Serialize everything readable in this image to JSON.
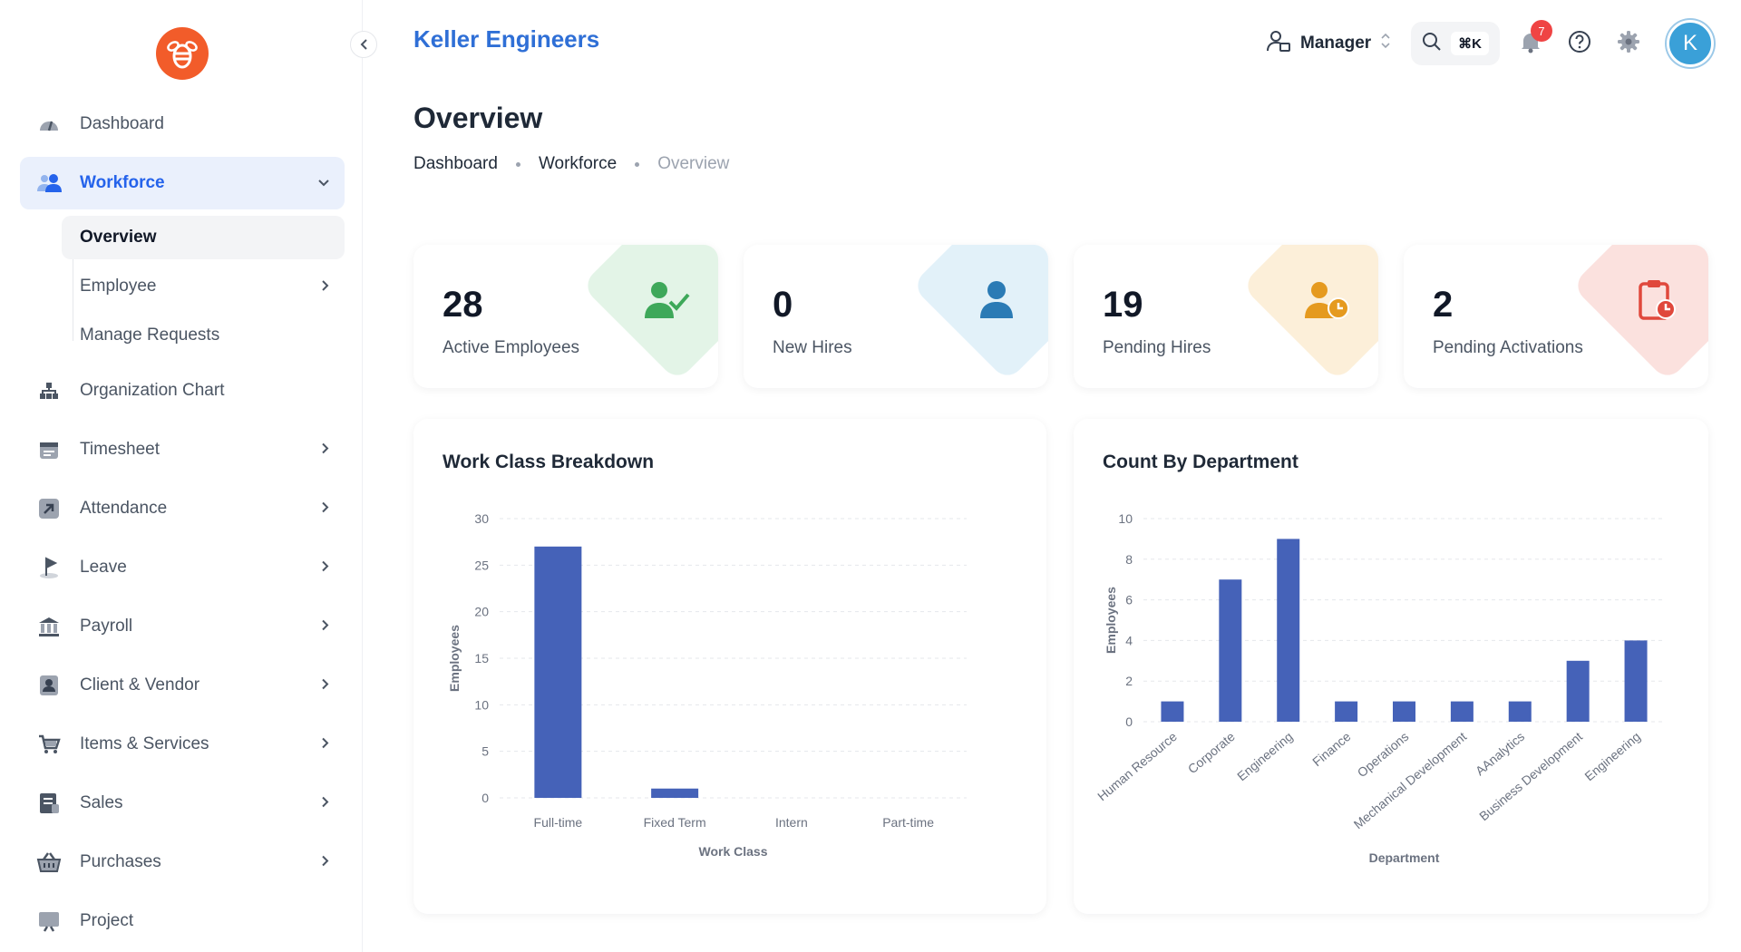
{
  "app": {
    "brand": "Keller Engineers",
    "collapse_icon": "chevron-left-icon"
  },
  "sidebar": {
    "items": [
      {
        "label": "Dashboard",
        "icon": "dashboard-icon",
        "active": false,
        "chevron": false
      },
      {
        "label": "Workforce",
        "icon": "users-icon",
        "active": true,
        "chevron": "down",
        "children": [
          {
            "label": "Overview",
            "selected": true,
            "chevron": false
          },
          {
            "label": "Employee",
            "selected": false,
            "chevron": true
          },
          {
            "label": "Manage Requests",
            "selected": false,
            "chevron": false
          }
        ]
      },
      {
        "label": "Organization Chart",
        "icon": "org-chart-icon",
        "active": false,
        "chevron": false
      },
      {
        "label": "Timesheet",
        "icon": "calendar-icon",
        "active": false,
        "chevron": true
      },
      {
        "label": "Attendance",
        "icon": "arrow-up-right-icon",
        "active": false,
        "chevron": true
      },
      {
        "label": "Leave",
        "icon": "flag-icon",
        "active": false,
        "chevron": true
      },
      {
        "label": "Payroll",
        "icon": "bank-icon",
        "active": false,
        "chevron": true
      },
      {
        "label": "Client & Vendor",
        "icon": "contact-icon",
        "active": false,
        "chevron": true
      },
      {
        "label": "Items & Services",
        "icon": "cart-icon",
        "active": false,
        "chevron": true
      },
      {
        "label": "Sales",
        "icon": "invoice-icon",
        "active": false,
        "chevron": true
      },
      {
        "label": "Purchases",
        "icon": "basket-icon",
        "active": false,
        "chevron": true
      },
      {
        "label": "Project",
        "icon": "project-board-icon",
        "active": false,
        "chevron": false
      }
    ]
  },
  "header": {
    "role_label": "Manager",
    "shortcut": "⌘K",
    "notifications_count": "7",
    "avatar_initial": "K"
  },
  "page": {
    "title": "Overview",
    "breadcrumb": [
      "Dashboard",
      "Workforce",
      "Overview"
    ]
  },
  "stats": [
    {
      "value": "28",
      "label": "Active Employees",
      "icon": "user-check-icon",
      "color": "#3ea85a",
      "tint": "#e3f4e7"
    },
    {
      "value": "0",
      "label": "New Hires",
      "icon": "user-icon",
      "color": "#2b7bb5",
      "tint": "#e2f1f9"
    },
    {
      "value": "19",
      "label": "Pending Hires",
      "icon": "user-clock-icon",
      "color": "#e59a1f",
      "tint": "#fcefd9"
    },
    {
      "value": "2",
      "label": "Pending Activations",
      "icon": "clipboard-clock-icon",
      "color": "#e0483c",
      "tint": "#fbe1de"
    }
  ],
  "charts": {
    "work_class": {
      "title": "Work Class Breakdown",
      "chart_data": {
        "type": "bar",
        "categories": [
          "Full-time",
          "Fixed Term",
          "Intern",
          "Part-time"
        ],
        "values": [
          27,
          1,
          0,
          0
        ],
        "xlabel": "Work Class",
        "ylabel": "Employees",
        "ylim": [
          0,
          30
        ],
        "yticks": [
          0,
          5,
          10,
          15,
          20,
          25,
          30
        ],
        "grid": true,
        "bar_color": "#4562b8"
      }
    },
    "department": {
      "title": "Count By Department",
      "chart_data": {
        "type": "bar",
        "categories": [
          "Human Resource",
          "Corporate",
          "Engineering",
          "Finance",
          "Operations",
          "Mechanical Development",
          "AAnalytics",
          "Business Development",
          "Engineering"
        ],
        "values": [
          1,
          7,
          9,
          1,
          1,
          1,
          1,
          3,
          4
        ],
        "xlabel": "Department",
        "ylabel": "Employees",
        "ylim": [
          0,
          10
        ],
        "yticks": [
          0,
          2,
          4,
          6,
          8,
          10
        ],
        "grid": true,
        "bar_color": "#4562b8"
      }
    }
  }
}
